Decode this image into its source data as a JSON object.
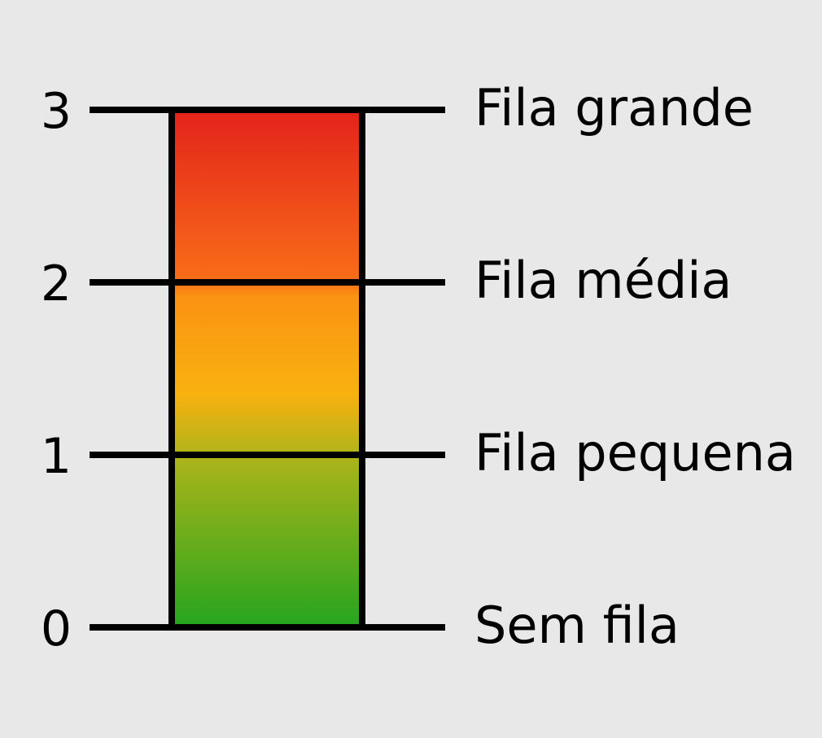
{
  "scale": {
    "levels": [
      {
        "value": "3",
        "label": "Fila grande"
      },
      {
        "value": "2",
        "label": "Fila média"
      },
      {
        "value": "1",
        "label": "Fila pequena"
      },
      {
        "value": "0",
        "label": "Sem fila"
      }
    ],
    "colors": {
      "background": "#e8e8e8",
      "stroke": "#000000",
      "gradient": [
        "#e3221b",
        "#f96d18",
        "#fa9212",
        "#f8b210",
        "#a8b41a",
        "#25a51e"
      ]
    }
  }
}
